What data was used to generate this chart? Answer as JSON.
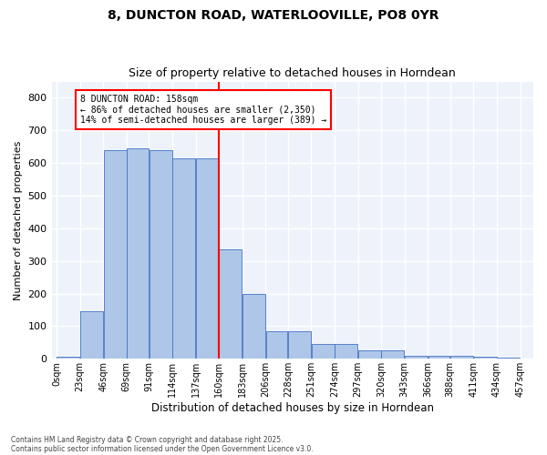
{
  "title": "8, DUNCTON ROAD, WATERLOOVILLE, PO8 0YR",
  "subtitle": "Size of property relative to detached houses in Horndean",
  "xlabel": "Distribution of detached houses by size in Horndean",
  "ylabel": "Number of detached properties",
  "footer1": "Contains HM Land Registry data © Crown copyright and database right 2025.",
  "footer2": "Contains public sector information licensed under the Open Government Licence v3.0.",
  "bar_left_edges": [
    0,
    23,
    46,
    69,
    91,
    114,
    137,
    160,
    183,
    206,
    228,
    251,
    274,
    297,
    320,
    343,
    366,
    388,
    411,
    434
  ],
  "bar_widths": [
    23,
    23,
    23,
    22,
    23,
    23,
    23,
    23,
    23,
    22,
    23,
    23,
    23,
    23,
    23,
    23,
    22,
    23,
    23,
    23
  ],
  "bar_heights": [
    5,
    145,
    640,
    645,
    640,
    615,
    615,
    335,
    200,
    85,
    85,
    45,
    45,
    25,
    25,
    10,
    10,
    10,
    5,
    3
  ],
  "bar_color": "#aec6e8",
  "bar_edge_color": "#4472c4",
  "bg_color": "#eef3fb",
  "grid_color": "#ffffff",
  "red_line_x": 160,
  "annotation_text": "8 DUNCTON ROAD: 158sqm\n← 86% of detached houses are smaller (2,350)\n14% of semi-detached houses are larger (389) →",
  "ylim": [
    0,
    850
  ],
  "yticks": [
    0,
    100,
    200,
    300,
    400,
    500,
    600,
    700,
    800
  ],
  "xtick_labels": [
    "0sqm",
    "23sqm",
    "46sqm",
    "69sqm",
    "91sqm",
    "114sqm",
    "137sqm",
    "160sqm",
    "183sqm",
    "206sqm",
    "228sqm",
    "251sqm",
    "274sqm",
    "297sqm",
    "320sqm",
    "343sqm",
    "366sqm",
    "388sqm",
    "411sqm",
    "434sqm",
    "457sqm"
  ],
  "xtick_positions": [
    0,
    23,
    46,
    69,
    91,
    114,
    137,
    160,
    183,
    206,
    228,
    251,
    274,
    297,
    320,
    343,
    366,
    388,
    411,
    434,
    457
  ],
  "xlim": [
    -5,
    470
  ]
}
